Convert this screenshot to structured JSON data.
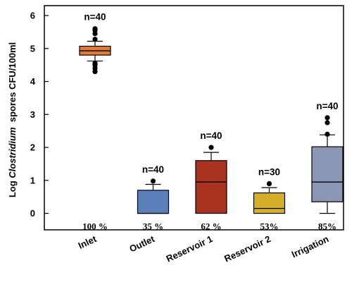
{
  "chart_data": {
    "type": "box",
    "ylabel": {
      "prefix": "Log ",
      "italic": "Clostridium",
      "suffix": "  spores CFU/100ml"
    },
    "ylim": [
      -0.5,
      6.3
    ],
    "yticks": [
      "0",
      "1",
      "2",
      "3",
      "4",
      "5",
      "6"
    ],
    "grid": false,
    "categories": [
      "Inlet",
      "Outlet",
      "Reservoir 1",
      "Reservoir 2",
      "Irrigation"
    ],
    "boxes": [
      {
        "category": "Inlet",
        "whisker_low": 4.62,
        "q1": 4.8,
        "median": 4.93,
        "q3": 5.07,
        "whisker_high": 5.22,
        "outliers": [
          4.3,
          4.4,
          4.5,
          4.55,
          5.28,
          5.45,
          5.55,
          5.6
        ],
        "n_label": "n=40",
        "percent_label": "100 %",
        "color": "#e07b39"
      },
      {
        "category": "Outlet",
        "whisker_low": 0.0,
        "q1": 0.0,
        "median": 0.0,
        "q3": 0.7,
        "whisker_high": 0.88,
        "outliers": [
          0.98
        ],
        "n_label": "n=40",
        "percent_label": "35 %",
        "color": "#5b7fbb"
      },
      {
        "category": "Reservoir 1",
        "whisker_low": 0.0,
        "q1": 0.0,
        "median": 0.95,
        "q3": 1.6,
        "whisker_high": 1.85,
        "outliers": [
          2.0
        ],
        "n_label": "n=40",
        "percent_label": "62 %",
        "color": "#a93320"
      },
      {
        "category": "Reservoir 2",
        "whisker_low": 0.0,
        "q1": 0.0,
        "median": 0.15,
        "q3": 0.62,
        "whisker_high": 0.78,
        "outliers": [
          0.9
        ],
        "n_label": "n=30",
        "percent_label": "53%",
        "color": "#d4b02a"
      },
      {
        "category": "Irrigation",
        "whisker_low": 0.0,
        "q1": 0.35,
        "median": 0.95,
        "q3": 2.02,
        "whisker_high": 2.38,
        "outliers": [
          2.4,
          2.75,
          2.9
        ],
        "n_label": "n=40",
        "percent_label": "85%",
        "color": "#8b97b5"
      }
    ]
  }
}
